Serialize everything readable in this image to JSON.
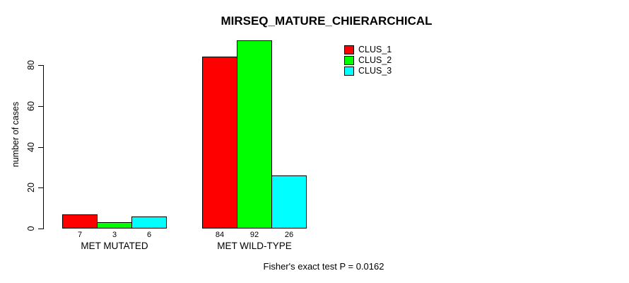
{
  "title": "MIRSEQ_MATURE_CHIERARCHICAL",
  "footnote": "Fisher's exact test P = 0.0162",
  "colors": {
    "clus_1": "#ff0000",
    "clus_2": "#00ff00",
    "clus_3": "#00ffff",
    "axis": "#000000",
    "background": "#ffffff"
  },
  "chart_data": {
    "type": "bar",
    "title": "MIRSEQ_MATURE_CHIERARCHICAL",
    "xlabel": "",
    "ylabel": "number of cases",
    "categories": [
      "MET MUTATED",
      "MET WILD-TYPE"
    ],
    "series": [
      {
        "name": "CLUS_1",
        "color": "#ff0000",
        "values": [
          7,
          84
        ]
      },
      {
        "name": "CLUS_2",
        "color": "#00ff00",
        "values": [
          3,
          92
        ]
      },
      {
        "name": "CLUS_3",
        "color": "#00ffff",
        "values": [
          6,
          26
        ]
      }
    ],
    "bar_value_labels": true,
    "yticks": [
      0,
      20,
      40,
      60,
      80
    ],
    "ylim": [
      0,
      97
    ],
    "grid": false,
    "legend_position": "top-right",
    "legend_entries": [
      "CLUS_1",
      "CLUS_2",
      "CLUS_3"
    ],
    "annotation": "Fisher's exact test P = 0.0162"
  }
}
